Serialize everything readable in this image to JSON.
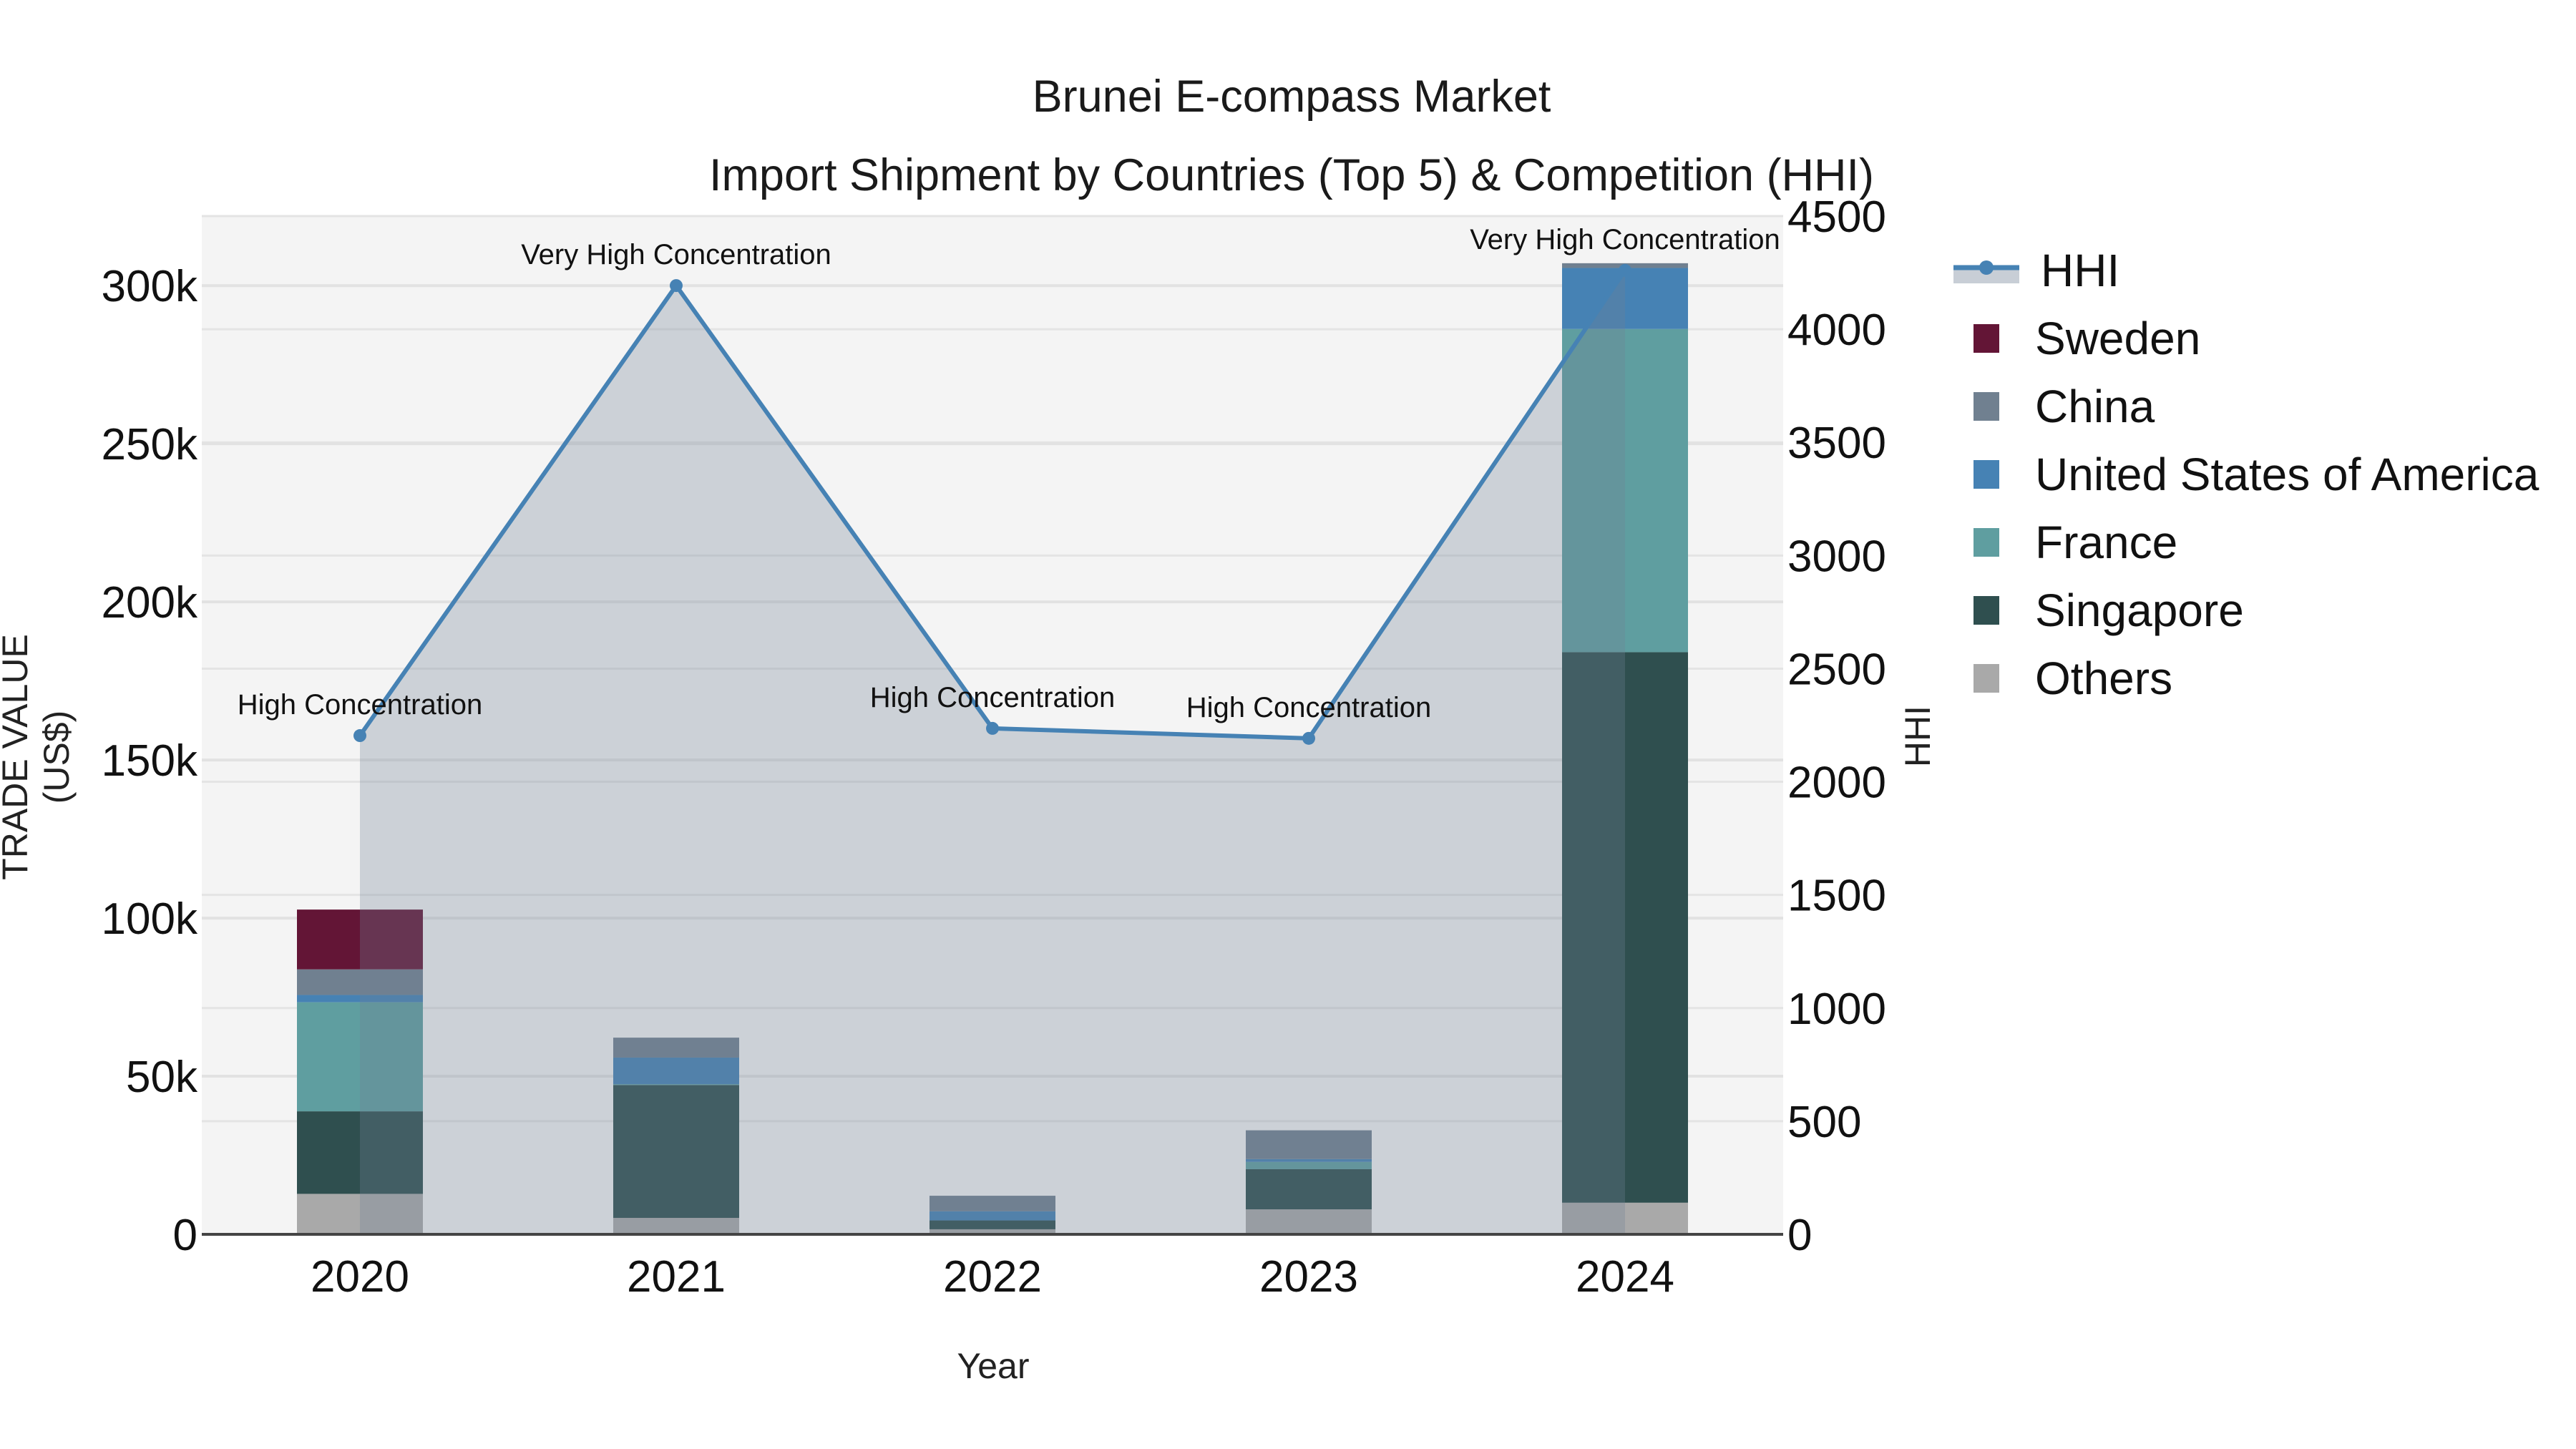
{
  "title": {
    "line1": "Brunei E-compass Market",
    "line2": "Import Shipment by Countries (Top 5) & Competition (HHI)"
  },
  "axes": {
    "x_label": "Year",
    "y_left_label": "TRADE VALUE (US$)",
    "y_right_label": "HHI",
    "y_left_ticks": [
      "0",
      "50k",
      "100k",
      "150k",
      "200k",
      "250k",
      "300k"
    ],
    "y_right_ticks": [
      "0",
      "500",
      "1000",
      "1500",
      "2000",
      "2500",
      "3000",
      "3500",
      "4000",
      "4500"
    ]
  },
  "legend": {
    "items": [
      {
        "label": "HHI",
        "type": "line",
        "color": "#4682B4"
      },
      {
        "label": "Sweden",
        "type": "bar",
        "color": "#631536"
      },
      {
        "label": "China",
        "type": "bar",
        "color": "#708090"
      },
      {
        "label": "United States of America",
        "type": "bar",
        "color": "#4682B4"
      },
      {
        "label": "France",
        "type": "bar",
        "color": "#5F9EA0"
      },
      {
        "label": "Singapore",
        "type": "bar",
        "color": "#2F4F4F"
      },
      {
        "label": "Others",
        "type": "bar",
        "color": "#A9A9A9"
      }
    ]
  },
  "chart_data": {
    "type": "bar",
    "stacked": true,
    "title": "Brunei E-compass Market — Import Shipment by Countries (Top 5) & Competition (HHI)",
    "xlabel": "Year",
    "ylabel": "TRADE VALUE (US$)",
    "y2label": "HHI",
    "ylim": [
      0,
      322000
    ],
    "y2lim": [
      0,
      4500
    ],
    "categories": [
      "2020",
      "2021",
      "2022",
      "2023",
      "2024"
    ],
    "series": [
      {
        "name": "Others",
        "color": "#A9A9A9",
        "values": [
          12800,
          5200,
          1600,
          7900,
          10000
        ]
      },
      {
        "name": "Singapore",
        "color": "#2F4F4F",
        "values": [
          26100,
          42000,
          2800,
          12700,
          174100
        ]
      },
      {
        "name": "France",
        "color": "#5F9EA0",
        "values": [
          34500,
          300,
          0,
          2300,
          102200
        ]
      },
      {
        "name": "United States of America",
        "color": "#4682B4",
        "values": [
          2300,
          8400,
          2900,
          900,
          19300
        ]
      },
      {
        "name": "China",
        "color": "#708090",
        "values": [
          8100,
          6300,
          4900,
          9100,
          1500
        ]
      },
      {
        "name": "Sweden",
        "color": "#631536",
        "values": [
          18900,
          0,
          0,
          0,
          0
        ]
      }
    ],
    "line_series": {
      "name": "HHI",
      "axis": "right",
      "color": "#4682B4",
      "fill": "tozeroy",
      "values": [
        2204,
        4193,
        2236,
        2192,
        4260
      ],
      "annotations": [
        "High Concentration",
        "Very High Concentration",
        "High Concentration",
        "High Concentration",
        "Very High Concentration"
      ]
    },
    "grid": true,
    "legend_position": "right"
  }
}
